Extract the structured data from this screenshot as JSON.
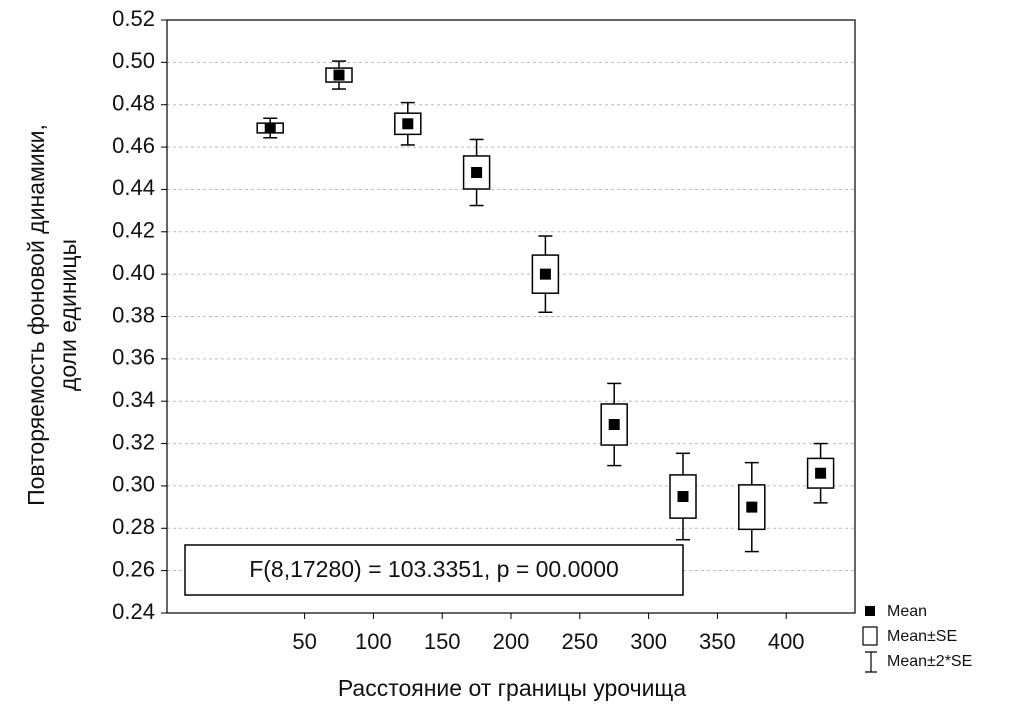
{
  "chart_data": {
    "type": "meanse",
    "ylabel": [
      "Повторяемость фоновой динамики,",
      "доли единицы"
    ],
    "xlabel": "Расстояние от границы урочища",
    "annotation": "F(8,17280) = 103.3351, p = 00.0000",
    "x": [
      25,
      75,
      125,
      175,
      225,
      275,
      325,
      375,
      425
    ],
    "mean": [
      0.469,
      0.494,
      0.471,
      0.448,
      0.4,
      0.329,
      0.295,
      0.29,
      0.306
    ],
    "se": [
      0.0023,
      0.0033,
      0.005,
      0.0078,
      0.009,
      0.0097,
      0.0102,
      0.0105,
      0.007
    ],
    "xlim": [
      -50,
      450
    ],
    "xticks": [
      50,
      100,
      150,
      200,
      250,
      300,
      350,
      400
    ],
    "ylim": [
      0.24,
      0.52
    ],
    "yticks": [
      0.24,
      0.26,
      0.28,
      {
        "value": 0.3,
        "label": "0.30"
      },
      0.32,
      0.34,
      0.36,
      0.38,
      {
        "value": 0.4,
        "label": "0.40"
      },
      0.42,
      0.44,
      0.46,
      0.48,
      {
        "value": 0.5,
        "label": "0.50"
      },
      0.52
    ],
    "grid": true,
    "legend": [
      "Mean",
      "Mean±SE",
      "Mean±2*SE"
    ],
    "color": "#000000"
  }
}
